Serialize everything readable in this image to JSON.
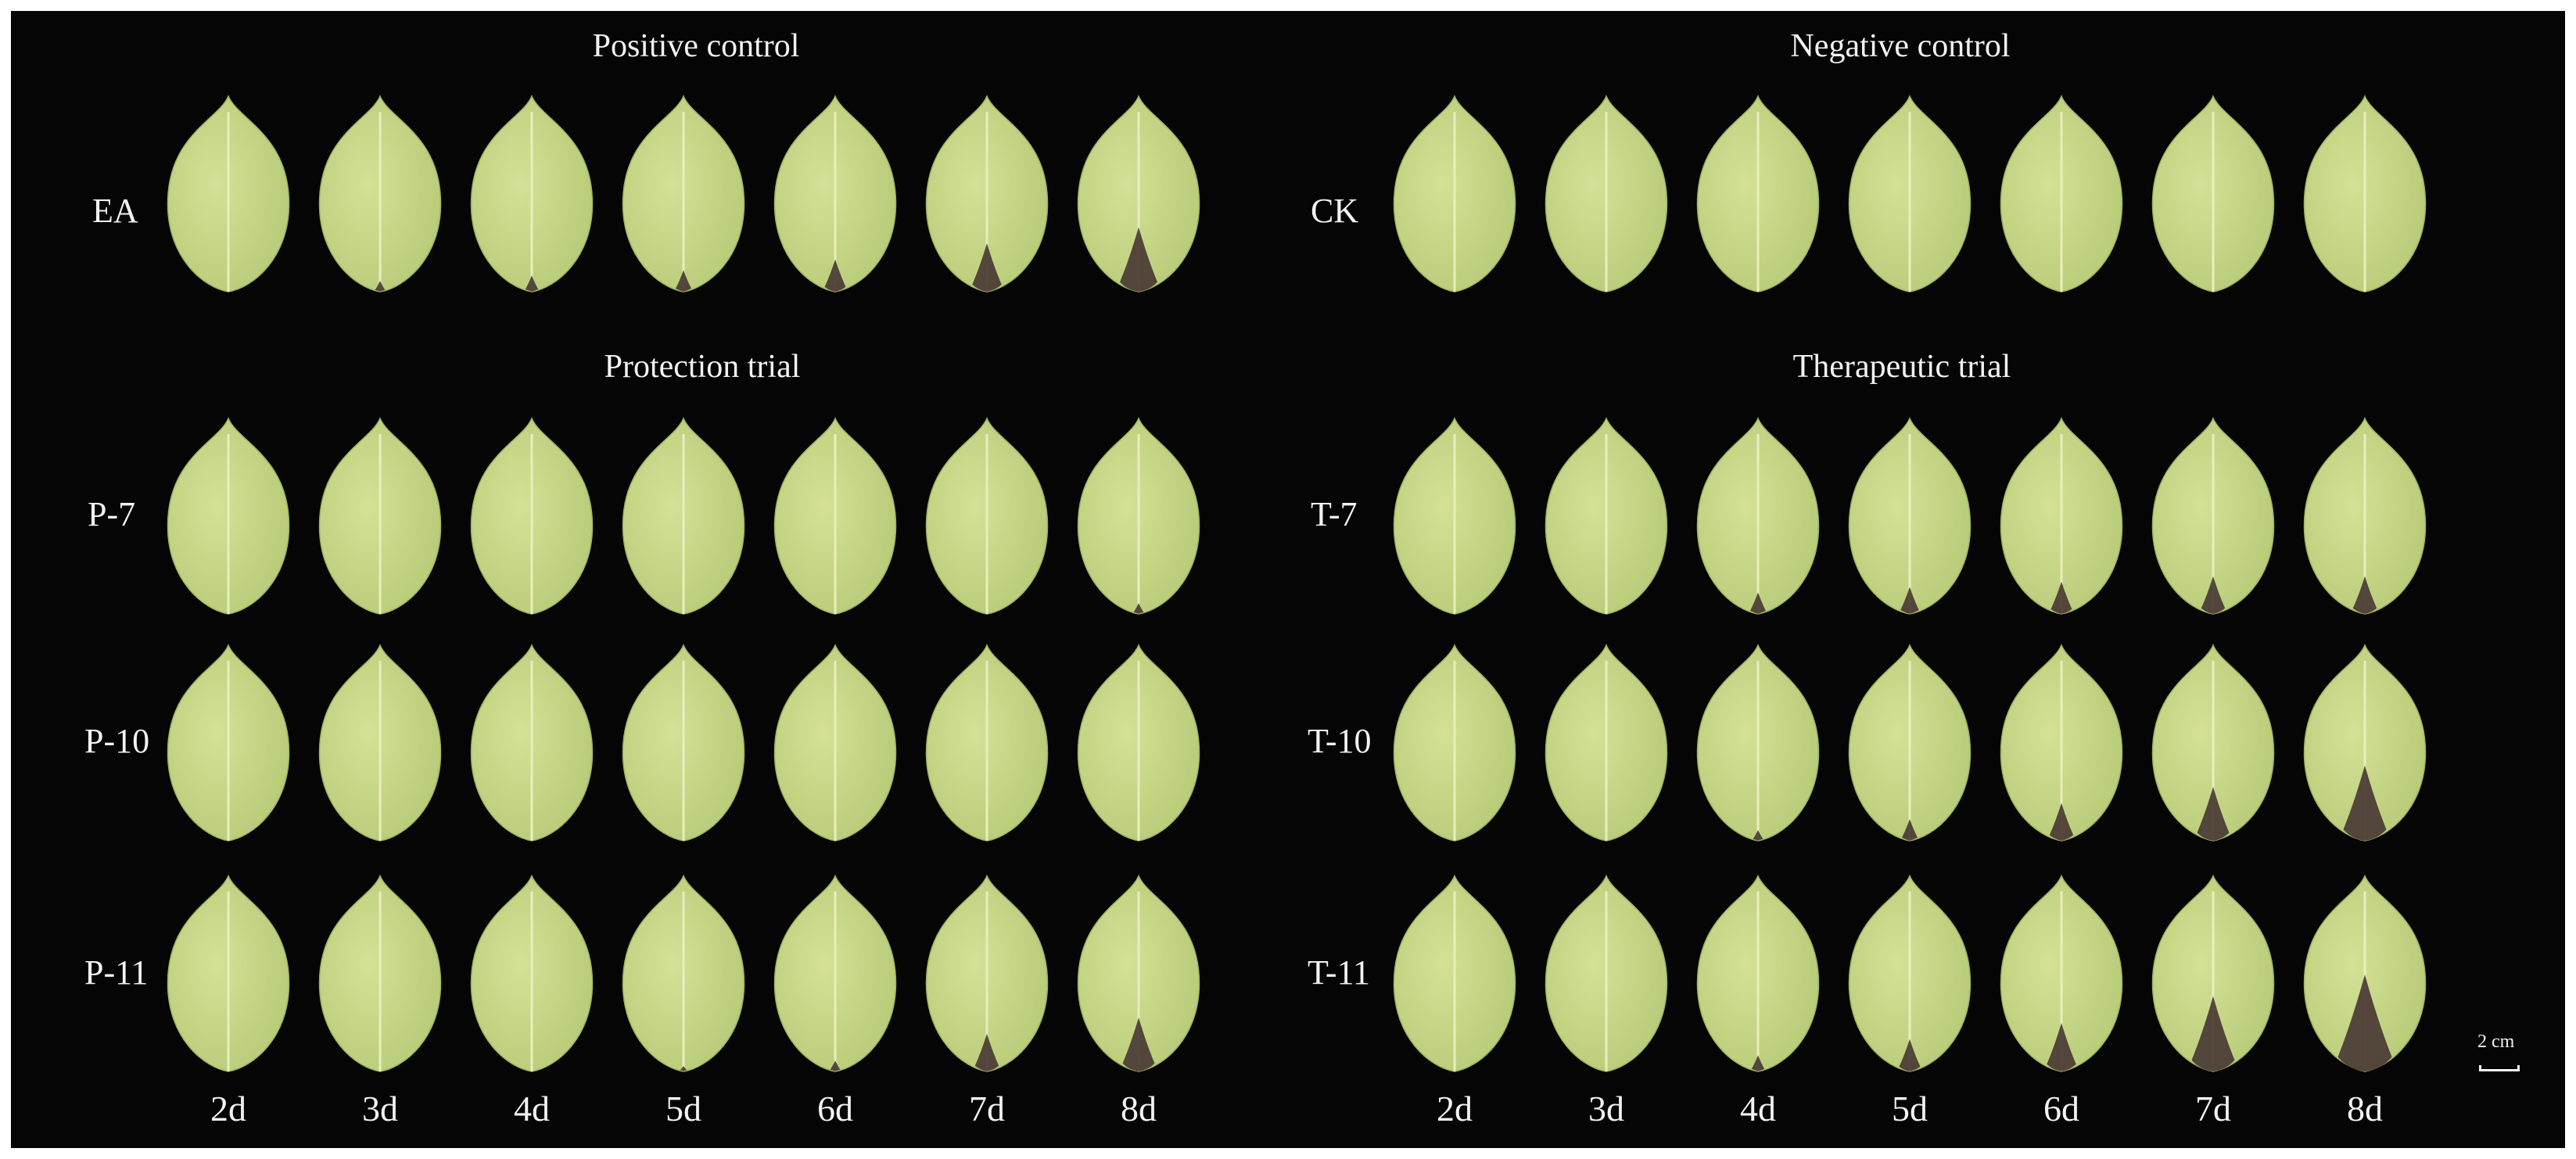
{
  "sections": {
    "positive_control": "Positive control",
    "negative_control": "Negative control",
    "protection_trial": "Protection trial",
    "therapeutic_trial": "Therapeutic trial"
  },
  "rows": {
    "left": [
      "EA",
      "P-7",
      "P-10",
      "P-11"
    ],
    "right": [
      "CK",
      "T-7",
      "T-10",
      "T-11"
    ]
  },
  "days": [
    "2d",
    "3d",
    "4d",
    "5d",
    "6d",
    "7d",
    "8d"
  ],
  "scale_bar": "2 cm",
  "lesion_levels": {
    "EA": [
      0,
      0.1,
      0.15,
      0.2,
      0.3,
      0.45,
      0.6
    ],
    "CK": [
      0,
      0,
      0,
      0,
      0,
      0,
      0
    ],
    "P-7": [
      0,
      0,
      0,
      0,
      0,
      0,
      0.1
    ],
    "P-10": [
      0,
      0,
      0,
      0,
      0,
      0,
      0
    ],
    "P-11": [
      0,
      0,
      0,
      0.05,
      0.1,
      0.35,
      0.5
    ],
    "T-7": [
      0,
      0,
      0.2,
      0.25,
      0.3,
      0.35,
      0.35
    ],
    "T-10": [
      0,
      0,
      0.1,
      0.2,
      0.35,
      0.5,
      0.7
    ],
    "T-11": [
      0,
      0,
      0.15,
      0.3,
      0.45,
      0.7,
      0.9
    ]
  },
  "colors": {
    "background": "#050505",
    "leaf": "#b7cb78",
    "leaf_light": "#d4e196",
    "lesion": "#4a3a34"
  }
}
